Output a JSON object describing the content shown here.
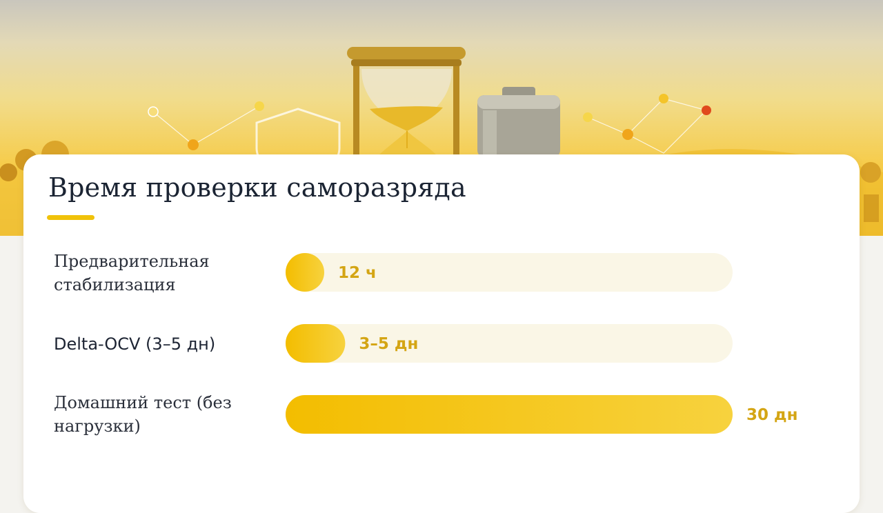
{
  "title": "Время проверки саморазряда",
  "colors": {
    "accent": "#f0c20a",
    "bar_start": "#f3bd00",
    "bar_end": "#f7d23e",
    "track": "#faf6e6",
    "value_text": "#d4a514",
    "title_text": "#1b2433"
  },
  "hero_icons": [
    "hourglass-icon",
    "battery-icon",
    "shield-icon",
    "tree-icon"
  ],
  "chart_data": {
    "type": "bar",
    "orientation": "horizontal",
    "categories": [
      "Предварительная стабилизация",
      "Delta-OCV (3–5 дн)",
      "Домашний тест (без нагрузки)"
    ],
    "values": [
      0.5,
      4,
      30
    ],
    "value_labels": [
      "12 ч",
      "3–5 дн",
      "30 дн"
    ],
    "unit": "дн",
    "xlim": [
      0,
      30
    ],
    "grid": false,
    "legend": "none"
  }
}
